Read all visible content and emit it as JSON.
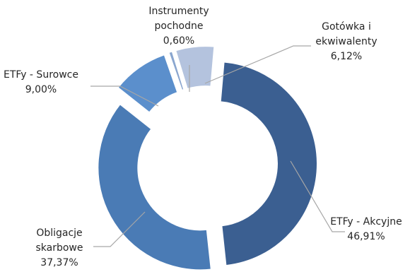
{
  "chart_data": {
    "type": "pie",
    "variant": "donut-exploded",
    "title": "",
    "legend": "none",
    "slices": [
      {
        "label_lines": [
          "ETFy - Akcyjne"
        ],
        "value_label": "46,91%",
        "value": 46.91,
        "color": "#3b5f91"
      },
      {
        "label_lines": [
          "Obligacje",
          "skarbowe"
        ],
        "value_label": "37,37%",
        "value": 37.37,
        "color": "#4a7bb5"
      },
      {
        "label_lines": [
          "ETFy - Surowce"
        ],
        "value_label": "9,00%",
        "value": 9.0,
        "color": "#5b8fcc"
      },
      {
        "label_lines": [
          "Instrumenty",
          "pochodne"
        ],
        "value_label": "0,60%",
        "value": 0.6,
        "color": "#8aa6cf"
      },
      {
        "label_lines": [
          "Gotówka i",
          "ekwiwalenty"
        ],
        "value_label": "6,12%",
        "value": 6.12,
        "color": "#b4c3de"
      }
    ]
  }
}
